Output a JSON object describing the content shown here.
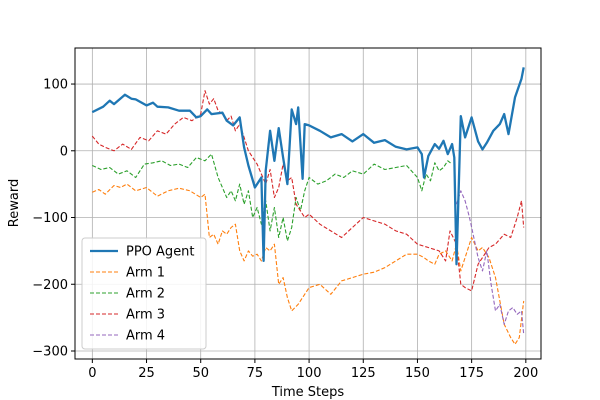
{
  "chart_data": {
    "type": "line",
    "title": "",
    "xlabel": "Time Steps",
    "ylabel": "Reward",
    "xlim": [
      -8,
      207
    ],
    "ylim": [
      -312,
      154
    ],
    "xticks": [
      0,
      25,
      50,
      75,
      100,
      125,
      150,
      175,
      200
    ],
    "yticks": [
      -300,
      -200,
      -100,
      0,
      100
    ],
    "grid": true,
    "legend_position": "lower-left",
    "series": [
      {
        "name": "PPO Agent",
        "color": "#1f77b4",
        "style": "solid",
        "x": [
          0,
          5,
          8,
          10,
          15,
          18,
          20,
          25,
          28,
          30,
          35,
          40,
          45,
          48,
          50,
          53,
          55,
          60,
          62,
          65,
          68,
          70,
          72,
          75,
          78,
          79,
          80,
          82,
          84,
          86,
          88,
          90,
          92,
          94,
          95,
          97,
          98,
          100,
          105,
          110,
          115,
          120,
          125,
          130,
          135,
          140,
          145,
          150,
          152,
          153,
          155,
          158,
          160,
          162,
          164,
          166,
          167,
          168,
          170,
          172,
          175,
          178,
          180,
          182,
          185,
          188,
          190,
          192,
          195,
          198,
          199
        ],
        "y": [
          58,
          66,
          75,
          70,
          84,
          78,
          77,
          68,
          72,
          66,
          65,
          60,
          60,
          50,
          52,
          62,
          55,
          57,
          45,
          38,
          50,
          5,
          -22,
          -55,
          -40,
          -165,
          -30,
          30,
          -15,
          34,
          -10,
          -50,
          62,
          40,
          65,
          -42,
          40,
          38,
          30,
          20,
          25,
          14,
          25,
          12,
          16,
          6,
          2,
          5,
          -5,
          -40,
          -8,
          10,
          3,
          15,
          -5,
          10,
          -10,
          -170,
          52,
          20,
          50,
          14,
          2,
          12,
          30,
          40,
          55,
          25,
          80,
          108,
          125
        ]
      },
      {
        "name": "Arm 1",
        "color": "#ff7f0e",
        "style": "dashed",
        "x": [
          0,
          3,
          6,
          10,
          13,
          16,
          20,
          25,
          30,
          35,
          40,
          45,
          50,
          52,
          54,
          56,
          58,
          60,
          62,
          64,
          66,
          68,
          70,
          72,
          74,
          76,
          78,
          80,
          82,
          84,
          86,
          88,
          90,
          92,
          95,
          100,
          105,
          110,
          115,
          120,
          125,
          130,
          135,
          140,
          145,
          150,
          153,
          155,
          158,
          160,
          163,
          166,
          168,
          170,
          172,
          175,
          178,
          180,
          183,
          186,
          190,
          193,
          195,
          197,
          199
        ],
        "y": [
          -62,
          -58,
          -65,
          -52,
          -55,
          -50,
          -60,
          -55,
          -68,
          -60,
          -56,
          -60,
          -70,
          -65,
          -130,
          -125,
          -140,
          -120,
          -125,
          -115,
          -110,
          -150,
          -165,
          -150,
          -158,
          -155,
          -165,
          -145,
          -150,
          -140,
          -200,
          -190,
          -220,
          -240,
          -230,
          -205,
          -200,
          -215,
          -195,
          -190,
          -185,
          -182,
          -175,
          -165,
          -155,
          -155,
          -160,
          -165,
          -170,
          -155,
          -150,
          -165,
          -140,
          -180,
          -160,
          -130,
          -150,
          -145,
          -160,
          -190,
          -260,
          -280,
          -290,
          -280,
          -225
        ]
      },
      {
        "name": "Arm 2",
        "color": "#2ca02c",
        "style": "dashed",
        "x": [
          0,
          4,
          8,
          12,
          16,
          20,
          24,
          28,
          32,
          36,
          40,
          44,
          48,
          52,
          55,
          58,
          60,
          62,
          64,
          66,
          68,
          70,
          72,
          74,
          76,
          78,
          80,
          82,
          84,
          86,
          88,
          90,
          92,
          94,
          96,
          98,
          100,
          104,
          108,
          112,
          116,
          120,
          125,
          130,
          135,
          140,
          145,
          150,
          152,
          154,
          156,
          158,
          160,
          162,
          164,
          166
        ],
        "y": [
          -22,
          -28,
          -25,
          -35,
          -30,
          -40,
          -20,
          -18,
          -15,
          -22,
          -20,
          -25,
          -10,
          -15,
          -5,
          -40,
          -55,
          -70,
          -60,
          -75,
          -50,
          -80,
          -60,
          -100,
          -85,
          -110,
          -75,
          -120,
          -85,
          -130,
          -100,
          -135,
          -115,
          -70,
          -90,
          -60,
          -40,
          -50,
          -45,
          -35,
          -40,
          -30,
          -35,
          -20,
          -28,
          -25,
          -22,
          -40,
          -60,
          -35,
          -45,
          -18,
          -30,
          -25,
          -15,
          -20
        ]
      },
      {
        "name": "Arm 3",
        "color": "#d62728",
        "style": "dashed",
        "x": [
          0,
          3,
          6,
          10,
          14,
          18,
          22,
          26,
          30,
          34,
          38,
          42,
          46,
          50,
          52,
          54,
          56,
          58,
          60,
          62,
          64,
          66,
          68,
          70,
          72,
          74,
          76,
          78,
          80,
          82,
          84,
          86,
          88,
          90,
          92,
          94,
          96,
          98,
          100,
          105,
          110,
          115,
          120,
          125,
          130,
          135,
          140,
          145,
          150,
          155,
          160,
          163,
          165,
          168,
          170,
          172,
          175,
          178,
          180,
          183,
          186,
          190,
          193,
          196,
          198,
          199
        ],
        "y": [
          22,
          10,
          5,
          0,
          10,
          2,
          20,
          15,
          30,
          25,
          40,
          50,
          45,
          55,
          90,
          70,
          78,
          60,
          55,
          45,
          52,
          30,
          40,
          20,
          0,
          -10,
          -20,
          -35,
          -50,
          -28,
          -70,
          -55,
          -20,
          -45,
          -40,
          -80,
          -90,
          -100,
          -95,
          -110,
          -120,
          -130,
          -115,
          -100,
          -105,
          -110,
          -120,
          -125,
          -140,
          -145,
          -150,
          -165,
          -120,
          -140,
          -200,
          -205,
          -210,
          -170,
          -160,
          -145,
          -140,
          -125,
          -130,
          -100,
          -75,
          -115
        ]
      },
      {
        "name": "Arm 4",
        "color": "#9467bd",
        "style": "dashed",
        "x": [
          168,
          170,
          172,
          174,
          176,
          178,
          180,
          182,
          184,
          186,
          188,
          190,
          192,
          194,
          196,
          198,
          199
        ],
        "y": [
          -80,
          -60,
          -75,
          -100,
          -130,
          -160,
          -180,
          -150,
          -200,
          -240,
          -230,
          -260,
          -240,
          -235,
          -245,
          -240,
          -275
        ]
      }
    ]
  }
}
